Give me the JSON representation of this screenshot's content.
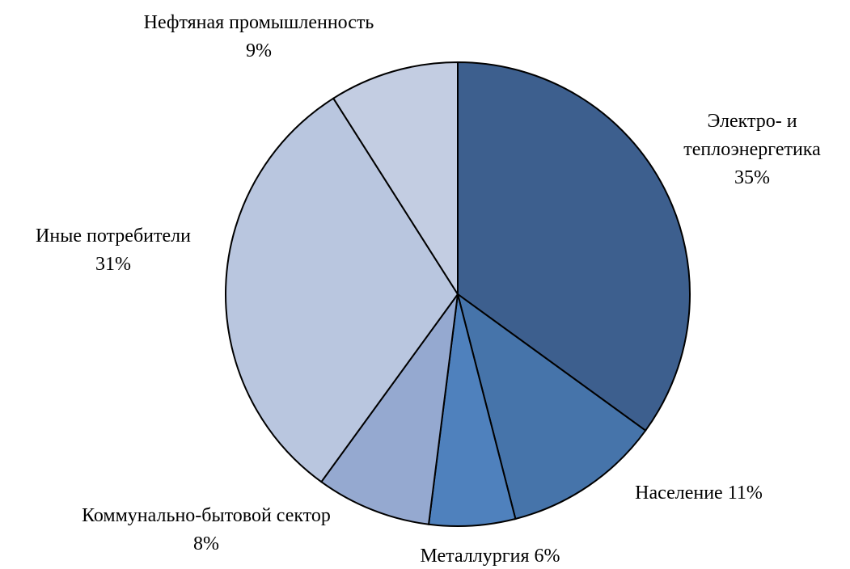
{
  "chart_data": {
    "type": "pie",
    "categories": [
      "Электро- и теплоэнергетика",
      "Население",
      "Металлургия",
      "Коммунально-бытовой сектор",
      "Иные потребители",
      "Нефтяная промышленность"
    ],
    "values": [
      35,
      11,
      6,
      8,
      31,
      9
    ],
    "value_labels": [
      "35%",
      "11%",
      "6%",
      "8%",
      "31%",
      "9%"
    ],
    "colors": [
      "#3d5f8e",
      "#4674aa",
      "#4f81bd",
      "#95a9d0",
      "#b9c6df",
      "#c3cde2"
    ]
  }
}
